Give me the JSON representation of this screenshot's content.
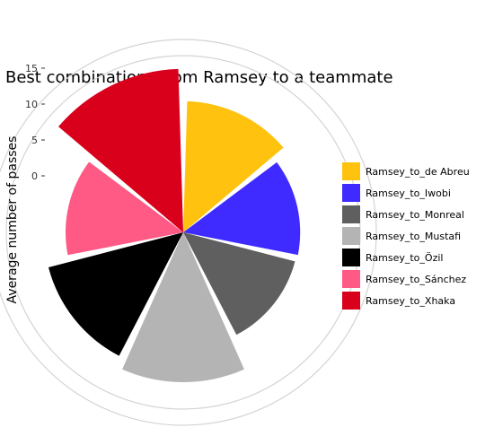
{
  "chart_data": {
    "type": "polar-bar",
    "title": "Best combinations from Ramsey to a teammate",
    "ylabel": "Average number of passes",
    "y_ticks": [
      0,
      5,
      10,
      15
    ],
    "ylim": [
      -10,
      15
    ],
    "grid": true,
    "legend_position": "right",
    "categories": [
      "Ramsey_to_de Abreu",
      "Ramsey_to_Iwobi",
      "Ramsey_to_Monreal",
      "Ramsey_to_Mustafi",
      "Ramsey_to_Özil",
      "Ramsey_to_Sánchez",
      "Ramsey_to_Xhaka"
    ],
    "values": [
      10.4,
      8.4,
      8.2,
      13.0,
      11.5,
      8.5,
      14.9
    ],
    "colors": [
      "#FFC20E",
      "#3F2BFF",
      "#5F5F5F",
      "#B4B4B4",
      "#000000",
      "#FF5985",
      "#D9001B"
    ]
  }
}
